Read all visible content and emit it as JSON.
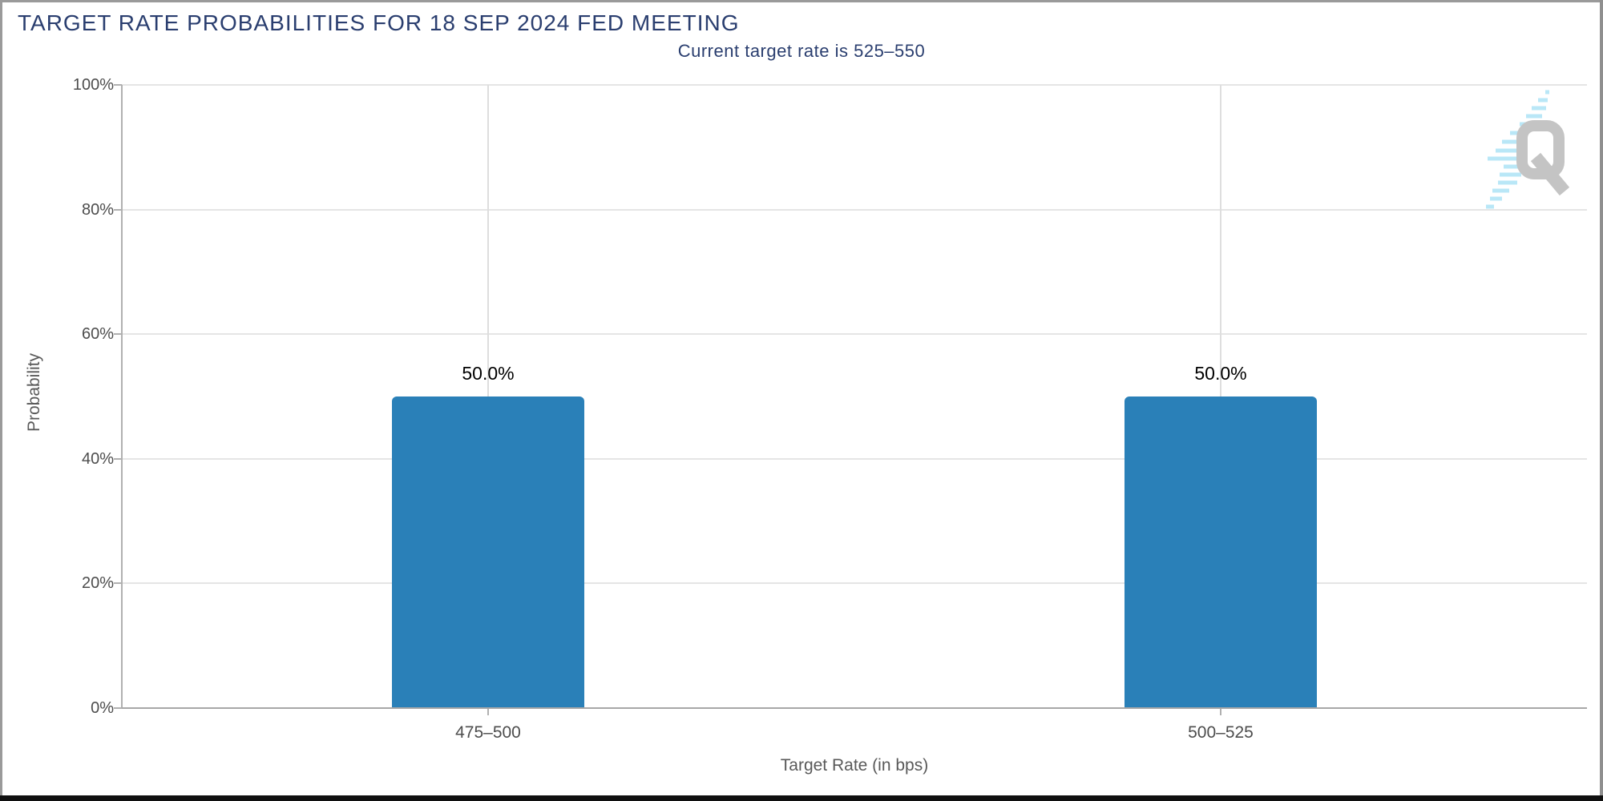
{
  "chart_data": {
    "type": "bar",
    "title": "TARGET RATE PROBABILITIES FOR 18 SEP 2024 FED MEETING",
    "subtitle": "Current target rate is 525–550",
    "categories": [
      "475–500",
      "500–525"
    ],
    "values": [
      50.0,
      50.0
    ],
    "bar_labels": [
      "50.0%",
      "50.0%"
    ],
    "xlabel": "Target Rate (in bps)",
    "ylabel": "Probability",
    "ylim": [
      0,
      100
    ],
    "ytick_step": 20,
    "yticks": [
      "0%",
      "20%",
      "40%",
      "60%",
      "80%",
      "100%"
    ],
    "grid": true,
    "legend": false,
    "colors": {
      "bar": "#2a80b8",
      "title_text": "#2a3e6f",
      "tick_text": "#4d4d4d",
      "axis_title_text": "#595959",
      "gridline": "#e5e5e5",
      "axis_line": "#a8a8a8",
      "value_label_text": "#000000"
    }
  },
  "watermark": {
    "name": "quikstrike-logo",
    "letter": "Q"
  }
}
